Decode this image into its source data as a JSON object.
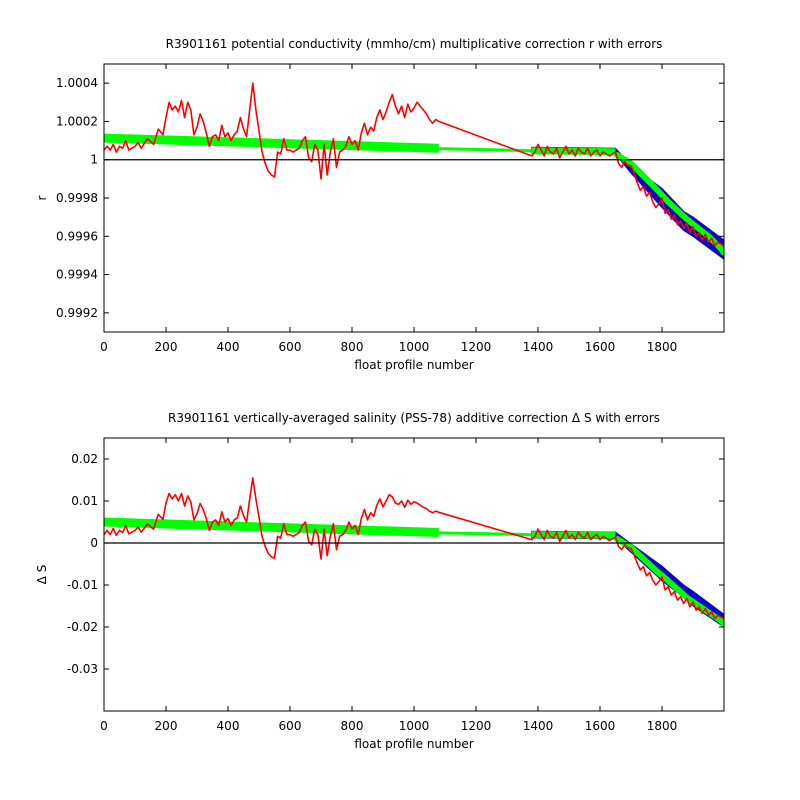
{
  "chart_data": [
    {
      "type": "line",
      "title": "R3901161 potential conductivity (mmho/cm) multiplicative correction r with errors",
      "xlabel": "float profile number",
      "ylabel": "r",
      "xlim": [
        0,
        2000
      ],
      "ylim": [
        0.9991,
        1.0005
      ],
      "xticks": [
        0,
        200,
        400,
        600,
        800,
        1000,
        1200,
        1400,
        1600,
        1800
      ],
      "xtick_labels": [
        "0",
        "200",
        "400",
        "600",
        "800",
        "1000",
        "1200",
        "1400",
        "1600",
        "1800"
      ],
      "yticks": [
        0.9992,
        0.9994,
        0.9996,
        0.9998,
        1.0,
        1.0002,
        1.0004
      ],
      "ytick_labels": [
        "0.9992",
        "0.9994",
        "0.9996",
        "0.9998",
        "1",
        "1.0002",
        "1.0004"
      ],
      "reference_line": 1.0,
      "grid": false,
      "series": [
        {
          "role": "error-band",
          "color": "#0000c8",
          "upper": [
            [
              1380,
              1.000065
            ],
            [
              1650,
              1.00006
            ],
            [
              1700,
              0.99997
            ],
            [
              1800,
              0.99985
            ],
            [
              1870,
              0.99973
            ],
            [
              1900,
              0.9997
            ],
            [
              2000,
              0.99958
            ]
          ],
          "lower": [
            [
              2000,
              0.99948
            ],
            [
              1900,
              0.9996
            ],
            [
              1870,
              0.99963
            ],
            [
              1800,
              0.99975
            ],
            [
              1700,
              0.99993
            ],
            [
              1650,
              1.00003
            ],
            [
              1380,
              1.000035
            ]
          ]
        },
        {
          "role": "fit-trend",
          "color": "#00ff00",
          "segments": [
            {
              "x": [
                0,
                1080
              ],
              "y": [
                1.000113,
                1.00006
              ],
              "width": 9
            },
            {
              "x": [
                1080,
                1380
              ],
              "y": [
                1.000058,
                1.000047
              ],
              "width": 3
            },
            {
              "x": [
                1380,
                1650
              ],
              "y": [
                1.000047,
                1.000042
              ],
              "width": 7
            },
            {
              "x": [
                1650,
                1700,
                1780,
                1820,
                1880,
                1950,
                2000
              ],
              "y": [
                1.00003,
                0.99998,
                0.99985,
                0.99978,
                0.99969,
                0.9996,
                0.99952
              ],
              "width": 6
            }
          ]
        },
        {
          "role": "profile-correction",
          "color": "#ff0000",
          "x": [
            0,
            10,
            20,
            30,
            40,
            50,
            60,
            70,
            80,
            90,
            100,
            110,
            120,
            140,
            160,
            175,
            190,
            200,
            210,
            220,
            230,
            240,
            250,
            260,
            270,
            280,
            290,
            300,
            310,
            320,
            330,
            340,
            350,
            360,
            370,
            380,
            390,
            400,
            410,
            420,
            430,
            440,
            450,
            460,
            470,
            480,
            490,
            500,
            510,
            520,
            530,
            540,
            550,
            560,
            570,
            580,
            590,
            600,
            610,
            620,
            630,
            640,
            650,
            660,
            670,
            680,
            690,
            700,
            710,
            720,
            730,
            740,
            750,
            760,
            770,
            780,
            790,
            800,
            810,
            820,
            830,
            840,
            850,
            860,
            870,
            880,
            890,
            900,
            910,
            920,
            930,
            940,
            950,
            960,
            970,
            980,
            990,
            1000,
            1010,
            1020,
            1030,
            1040,
            1050,
            1060,
            1070,
            1080,
            1380,
            1390,
            1400,
            1410,
            1420,
            1430,
            1440,
            1450,
            1460,
            1470,
            1480,
            1490,
            1500,
            1510,
            1520,
            1530,
            1540,
            1550,
            1560,
            1570,
            1580,
            1590,
            1600,
            1610,
            1620,
            1630,
            1640,
            1650,
            1660,
            1670,
            1680,
            1690,
            1700,
            1710,
            1720,
            1730,
            1740,
            1750,
            1760,
            1770,
            1780,
            1790,
            1800,
            1810,
            1820,
            1830,
            1840,
            1850,
            1860,
            1870,
            1880,
            1890,
            1900,
            1910,
            1920,
            1930,
            1940,
            1950,
            1960,
            1970,
            1980,
            1990,
            2000
          ],
          "y": [
            1.00005,
            1.00007,
            1.00005,
            1.00008,
            1.00004,
            1.00007,
            1.00006,
            1.0001,
            1.00005,
            1.00006,
            1.00007,
            1.00009,
            1.00006,
            1.00011,
            1.00008,
            1.00016,
            1.00013,
            1.00022,
            1.0003,
            1.00026,
            1.00028,
            1.00025,
            1.00031,
            1.00022,
            1.0003,
            1.00026,
            1.00013,
            1.00017,
            1.00024,
            1.0002,
            1.00014,
            1.00007,
            1.00012,
            1.00013,
            1.0001,
            1.00018,
            1.00012,
            1.00014,
            1.0001,
            1.00013,
            1.00015,
            1.00022,
            1.00016,
            1.00012,
            1.00026,
            1.0004,
            1.00026,
            1.00015,
            1.00004,
            0.99998,
            0.99994,
            0.99992,
            0.99991,
            1.00004,
            1.00003,
            1.00011,
            1.00005,
            1.00005,
            1.00004,
            1.00005,
            1.00006,
            1.0001,
            1.00012,
            1.00001,
            0.99999,
            1.00008,
            1.00005,
            0.9999,
            1.00008,
            0.99992,
            1.00004,
            1.00011,
            0.99996,
            1.00004,
            1.00005,
            1.00007,
            1.00012,
            1.00008,
            1.0001,
            1.00005,
            1.00014,
            1.00019,
            1.00013,
            1.00017,
            1.00015,
            1.00022,
            1.00026,
            1.00021,
            1.00025,
            1.0003,
            1.00034,
            1.00028,
            1.00024,
            1.00028,
            1.00022,
            1.00029,
            1.00025,
            1.00027,
            1.0003,
            1.00028,
            1.00026,
            1.00024,
            1.00021,
            1.00019,
            1.00021,
            1.0002,
            1.00002,
            1.00004,
            1.00008,
            1.00005,
            1.00002,
            1.00007,
            1.00004,
            1.00003,
            1.00006,
            1.00001,
            1.00004,
            1.00007,
            1.00003,
            1.00005,
            1.00002,
            1.00006,
            1.00004,
            1.00003,
            1.00006,
            1.00002,
            1.00004,
            1.00005,
            1.00002,
            1.00004,
            1.00003,
            1.00002,
            1.00003,
            1.00004,
            0.99998,
            0.99996,
            0.99999,
            0.99997,
            0.99997,
            0.99993,
            0.99988,
            0.99984,
            0.99986,
            0.99981,
            0.99983,
            0.99978,
            0.99975,
            0.99977,
            0.9998,
            0.99972,
            0.99974,
            0.99969,
            0.99971,
            0.99966,
            0.99968,
            0.99964,
            0.99967,
            0.99962,
            0.99965,
            0.9996,
            0.99962,
            0.99958,
            0.99961,
            0.99957,
            0.99959,
            0.99955,
            0.99957,
            0.99956,
            0.99955
          ]
        }
      ]
    },
    {
      "type": "line",
      "title": "R3901161 vertically-averaged salinity (PSS-78) additive correction Δ S with errors",
      "xlabel": "float profile number",
      "ylabel": "Δ S",
      "xlim": [
        0,
        2000
      ],
      "ylim": [
        -0.04,
        0.025
      ],
      "xticks": [
        0,
        200,
        400,
        600,
        800,
        1000,
        1200,
        1400,
        1600,
        1800
      ],
      "xtick_labels": [
        "0",
        "200",
        "400",
        "600",
        "800",
        "1000",
        "1200",
        "1400",
        "1600",
        "1800"
      ],
      "yticks": [
        -0.03,
        -0.02,
        -0.01,
        0,
        0.01,
        0.02
      ],
      "ytick_labels": [
        "-0.03",
        "-0.02",
        "-0.01",
        "0",
        "0.01",
        "0.02"
      ],
      "reference_line": 0,
      "grid": false,
      "series": [
        {
          "role": "error-band",
          "color": "#0000c8",
          "upper": [
            [
              1380,
              0.0028
            ],
            [
              1650,
              0.0026
            ],
            [
              1700,
              -0.0002
            ],
            [
              1800,
              -0.0055
            ],
            [
              1870,
              -0.01
            ],
            [
              1900,
              -0.0115
            ],
            [
              2000,
              -0.017
            ]
          ],
          "lower": [
            [
              2000,
              -0.02
            ],
            [
              1900,
              -0.015
            ],
            [
              1870,
              -0.013
            ],
            [
              1800,
              -0.009
            ],
            [
              1700,
              -0.0022
            ],
            [
              1650,
              0.001
            ],
            [
              1380,
              0.0012
            ]
          ]
        },
        {
          "role": "fit-trend",
          "color": "#00ff00",
          "segments": [
            {
              "x": [
                0,
                1080
              ],
              "y": [
                0.005,
                0.0025
              ],
              "width": 9
            },
            {
              "x": [
                1080,
                1380
              ],
              "y": [
                0.0024,
                0.002
              ],
              "width": 3
            },
            {
              "x": [
                1380,
                1650
              ],
              "y": [
                0.002,
                0.0018
              ],
              "width": 7
            },
            {
              "x": [
                1650,
                1700,
                1780,
                1820,
                1880,
                1950,
                2000
              ],
              "y": [
                0.0012,
                -0.001,
                -0.0065,
                -0.009,
                -0.013,
                -0.0165,
                -0.019
              ],
              "width": 6
            }
          ]
        },
        {
          "role": "profile-correction",
          "color": "#ff0000",
          "x": [
            0,
            10,
            20,
            30,
            40,
            50,
            60,
            70,
            80,
            90,
            100,
            110,
            120,
            140,
            160,
            175,
            190,
            200,
            210,
            220,
            230,
            240,
            250,
            260,
            270,
            280,
            290,
            300,
            310,
            320,
            330,
            340,
            350,
            360,
            370,
            380,
            390,
            400,
            410,
            420,
            430,
            440,
            450,
            460,
            470,
            480,
            490,
            500,
            510,
            520,
            530,
            540,
            550,
            560,
            570,
            580,
            590,
            600,
            610,
            620,
            630,
            640,
            650,
            660,
            670,
            680,
            690,
            700,
            710,
            720,
            730,
            740,
            750,
            760,
            770,
            780,
            790,
            800,
            810,
            820,
            830,
            840,
            850,
            860,
            870,
            880,
            890,
            900,
            910,
            920,
            930,
            940,
            950,
            960,
            970,
            980,
            990,
            1000,
            1010,
            1020,
            1030,
            1040,
            1050,
            1060,
            1070,
            1080,
            1380,
            1390,
            1400,
            1410,
            1420,
            1430,
            1440,
            1450,
            1460,
            1470,
            1480,
            1490,
            1500,
            1510,
            1520,
            1530,
            1540,
            1550,
            1560,
            1570,
            1580,
            1590,
            1600,
            1610,
            1620,
            1630,
            1640,
            1650,
            1660,
            1670,
            1680,
            1690,
            1700,
            1710,
            1720,
            1730,
            1740,
            1750,
            1760,
            1770,
            1780,
            1790,
            1800,
            1810,
            1820,
            1830,
            1840,
            1850,
            1860,
            1870,
            1880,
            1890,
            1900,
            1910,
            1920,
            1930,
            1940,
            1950,
            1960,
            1970,
            1980,
            1990,
            2000
          ],
          "y": [
            0.002,
            0.003,
            0.002,
            0.0035,
            0.0018,
            0.003,
            0.0025,
            0.0042,
            0.0022,
            0.0026,
            0.003,
            0.0038,
            0.0026,
            0.0045,
            0.0033,
            0.0068,
            0.0056,
            0.0095,
            0.0118,
            0.0105,
            0.0115,
            0.01,
            0.0118,
            0.0088,
            0.0112,
            0.0098,
            0.0055,
            0.007,
            0.0094,
            0.008,
            0.0058,
            0.003,
            0.005,
            0.0055,
            0.0042,
            0.0074,
            0.005,
            0.0058,
            0.0042,
            0.0055,
            0.006,
            0.0088,
            0.0065,
            0.005,
            0.0105,
            0.0155,
            0.0105,
            0.0062,
            0.0015,
            -0.0008,
            -0.0025,
            -0.0033,
            -0.0036,
            0.0016,
            0.0012,
            0.0046,
            0.002,
            0.002,
            0.0016,
            0.002,
            0.0025,
            0.0042,
            0.005,
            0.0004,
            -0.0004,
            0.0033,
            0.002,
            -0.0038,
            0.0033,
            -0.003,
            0.0016,
            0.0046,
            -0.0016,
            0.0016,
            0.002,
            0.003,
            0.005,
            0.0033,
            0.0042,
            0.002,
            0.0058,
            0.008,
            0.0055,
            0.0072,
            0.0063,
            0.009,
            0.0105,
            0.0086,
            0.01,
            0.0115,
            0.011,
            0.0095,
            0.0092,
            0.01,
            0.0085,
            0.0102,
            0.0092,
            0.0098,
            0.0095,
            0.009,
            0.0085,
            0.0082,
            0.0076,
            0.0072,
            0.0076,
            0.0073,
            0.0008,
            0.0016,
            0.0033,
            0.002,
            0.0008,
            0.003,
            0.0016,
            0.0012,
            0.0025,
            0.0004,
            0.0016,
            0.003,
            0.0012,
            0.002,
            0.0008,
            0.0025,
            0.0016,
            0.0012,
            0.0025,
            0.0008,
            0.0016,
            0.002,
            0.0008,
            0.0016,
            0.0012,
            0.0006,
            0.001,
            0.0014,
            -0.0008,
            -0.0016,
            -0.0004,
            -0.0012,
            -0.0013,
            -0.0028,
            -0.0048,
            -0.0064,
            -0.0056,
            -0.0078,
            -0.007,
            -0.0088,
            -0.01,
            -0.0092,
            -0.008,
            -0.0112,
            -0.0104,
            -0.0124,
            -0.0116,
            -0.0136,
            -0.0128,
            -0.0144,
            -0.0132,
            -0.0152,
            -0.014,
            -0.016,
            -0.0152,
            -0.0168,
            -0.0156,
            -0.0172,
            -0.0164,
            -0.018,
            -0.0172,
            -0.0176,
            -0.018
          ]
        }
      ]
    }
  ]
}
